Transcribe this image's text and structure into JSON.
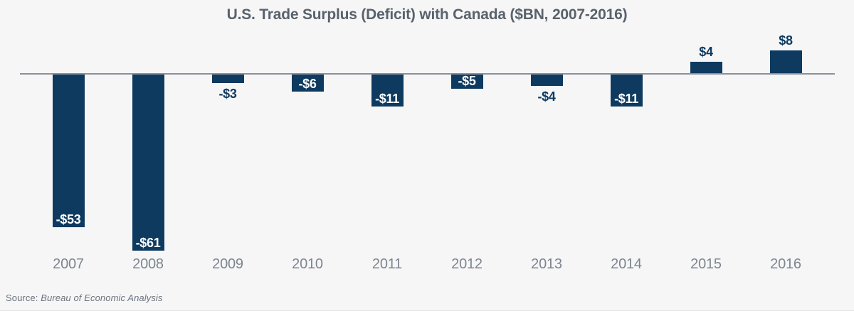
{
  "title": "U.S. Trade Surplus (Deficit) with Canada ($BN, 2007-2016)",
  "source": {
    "prefix": "Source: ",
    "text": "Bureau of Economic Analysis"
  },
  "colors": {
    "bar": "#0e3a60",
    "background": "#f6f6f7",
    "zero_line": "#8a9099",
    "title": "#59626c",
    "axis_label": "#7d8590",
    "inside_label": "#ffffff",
    "source_text": "#6b747e",
    "bottom_border": "#e2e3e5"
  },
  "chart_data": {
    "type": "bar",
    "title": "U.S. Trade Surplus (Deficit) with Canada ($BN, 2007-2016)",
    "categories": [
      "2007",
      "2008",
      "2009",
      "2010",
      "2011",
      "2012",
      "2013",
      "2014",
      "2015",
      "2016"
    ],
    "values": [
      -53,
      -61,
      -3,
      -6,
      -11,
      -5,
      -4,
      -11,
      4,
      8
    ],
    "labels": [
      "-$53",
      "-$61",
      "-$3",
      "-$6",
      "-$11",
      "-$5",
      "-$4",
      "-$11",
      "$4",
      "$8"
    ],
    "label_placement": [
      "inside",
      "inside",
      "below",
      "inside",
      "inside",
      "inside",
      "below",
      "inside",
      "above",
      "above"
    ],
    "xlabel": "",
    "ylabel": "",
    "ylim": [
      -65,
      10
    ],
    "grid": false,
    "zero_line": true,
    "legend": "none"
  }
}
